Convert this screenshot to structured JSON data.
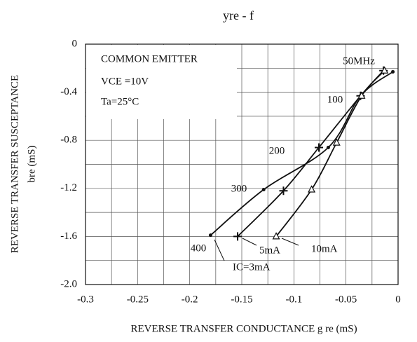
{
  "chart_data": {
    "type": "line",
    "title": "yre - f",
    "y_label": "REVERSE TRANSFER SUSCEPTANCE",
    "y_label_2": "bre (mS)",
    "x_label": "REVERSE TRANSFER CONDUCTANCE g re (mS)",
    "annotations": [
      "COMMON EMITTER",
      "VCE =10V",
      "Ta=25°C"
    ],
    "frequency_labels": [
      "50MHz",
      "100",
      "200",
      "300",
      "400"
    ],
    "xlim": [
      -0.3,
      0
    ],
    "xticks": [
      -0.3,
      -0.25,
      -0.2,
      -0.15,
      -0.1,
      -0.05,
      0
    ],
    "ylim": [
      -2,
      0
    ],
    "yticks": [
      0,
      -0.4,
      -0.8,
      -1.2,
      -1.6,
      {
        "value": -2,
        "label": "-2.0"
      }
    ],
    "grid": true,
    "series": [
      {
        "name": "IC=3mA",
        "color": "#111111",
        "marker": "dot",
        "x": [
          -0.005,
          -0.036,
          -0.067,
          -0.129,
          -0.18
        ],
        "values": [
          -0.23,
          -0.43,
          -0.86,
          -1.21,
          -1.59
        ]
      },
      {
        "name": "5mA",
        "color": "#111111",
        "marker": "plus",
        "x": [
          -0.014,
          -0.036,
          -0.076,
          -0.11,
          -0.154
        ],
        "values": [
          -0.22,
          -0.43,
          -0.86,
          -1.22,
          -1.6
        ]
      },
      {
        "name": "10mA",
        "color": "#111111",
        "marker": "triangle",
        "x": [
          -0.013,
          -0.035,
          -0.059,
          -0.083,
          -0.117
        ],
        "values": [
          -0.22,
          -0.43,
          -0.82,
          -1.21,
          -1.6
        ]
      }
    ]
  }
}
